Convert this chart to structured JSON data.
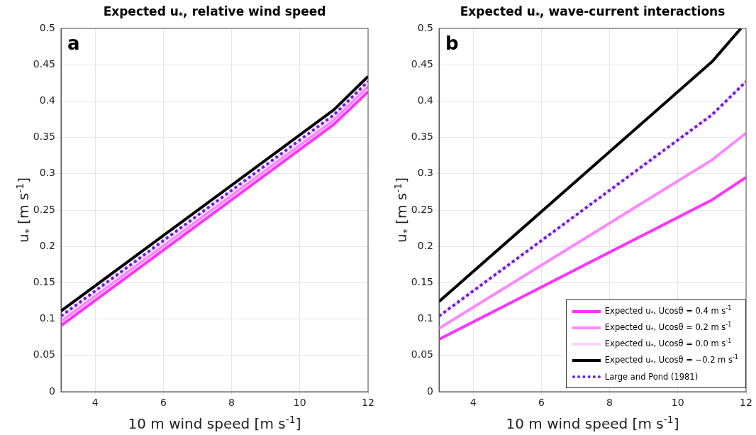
{
  "chart_data": [
    {
      "type": "line",
      "title": "Expected u$_{*}$, relative wind speed",
      "xlabel": "10 m wind speed [m s$^{-1}$]",
      "ylabel": "u$_{*}$ [m s$^{-1}$]",
      "annotations": [
        "a"
      ],
      "xlim": [
        3,
        12
      ],
      "xticks": [
        4,
        6,
        8,
        10,
        12
      ],
      "ylim": [
        0,
        0.5
      ],
      "yticks": [
        0,
        0.05,
        0.1,
        0.15,
        0.2,
        0.25,
        0.3,
        0.35,
        0.4,
        0.45,
        0.5
      ],
      "grid": true,
      "legend": false,
      "marker": "none",
      "series": [
        {
          "color": "#ff33ff",
          "x": [
            3,
            11,
            12
          ],
          "values": [
            0.091,
            0.368,
            0.413
          ]
        },
        {
          "color": "#ff88ff",
          "x": [
            3,
            11,
            12
          ],
          "values": [
            0.097,
            0.374,
            0.42
          ]
        },
        {
          "color": "#ffd0ff",
          "x": [
            3,
            11,
            12
          ],
          "values": [
            0.103,
            0.38,
            0.427
          ]
        },
        {
          "color": "#000000",
          "x": [
            3,
            11,
            12
          ],
          "values": [
            0.111,
            0.388,
            0.434
          ]
        },
        {
          "color": "#6020e0",
          "x": [
            3,
            11,
            12
          ],
          "values": [
            0.104,
            0.381,
            0.427
          ],
          "line_style": "dotted"
        }
      ]
    },
    {
      "type": "line",
      "title": "Expected u$_{*}$, wave-current interactions",
      "xlabel": "10 m wind speed [m s$^{-1}$]",
      "ylabel": "u$_{*}$ [m s$^{-1}$]",
      "annotations": [
        "b"
      ],
      "xlim": [
        3,
        12
      ],
      "xticks": [
        4,
        6,
        8,
        10,
        12
      ],
      "ylim": [
        0,
        0.5
      ],
      "yticks": [
        0,
        0.05,
        0.1,
        0.15,
        0.2,
        0.25,
        0.3,
        0.35,
        0.4,
        0.45,
        0.5
      ],
      "grid": true,
      "legend": "bottom right",
      "marker": "none",
      "series": [
        {
          "name": "Expected u$_{*}$, Ucosθ = 0.4 m s$^{-1}$",
          "color": "#ff33ff",
          "x": [
            3,
            11,
            12
          ],
          "values": [
            0.072,
            0.264,
            0.295
          ]
        },
        {
          "name": "Expected u$_{*}$, Ucosθ = 0.2 m s$^{-1}$",
          "color": "#ff88ff",
          "x": [
            3,
            11,
            12
          ],
          "values": [
            0.087,
            0.319,
            0.356
          ]
        },
        {
          "name": "Expected u$_{*}$, Ucosθ = 0.0 m s$^{-1}$",
          "color": "#ffd0ff",
          "x": [
            3,
            11,
            12
          ],
          "values": [
            0.104,
            0.381,
            0.427
          ]
        },
        {
          "name": "Expected u$_{*}$, Ucosθ = −0.2 m s$^{-1}$",
          "color": "#000000",
          "x": [
            3,
            11,
            11.85
          ],
          "values": [
            0.124,
            0.454,
            0.5
          ]
        },
        {
          "name": "Large and Pond (1981)",
          "color": "#6020e0",
          "x": [
            3,
            11,
            12
          ],
          "values": [
            0.104,
            0.381,
            0.427
          ],
          "line_style": "dotted"
        }
      ]
    }
  ]
}
